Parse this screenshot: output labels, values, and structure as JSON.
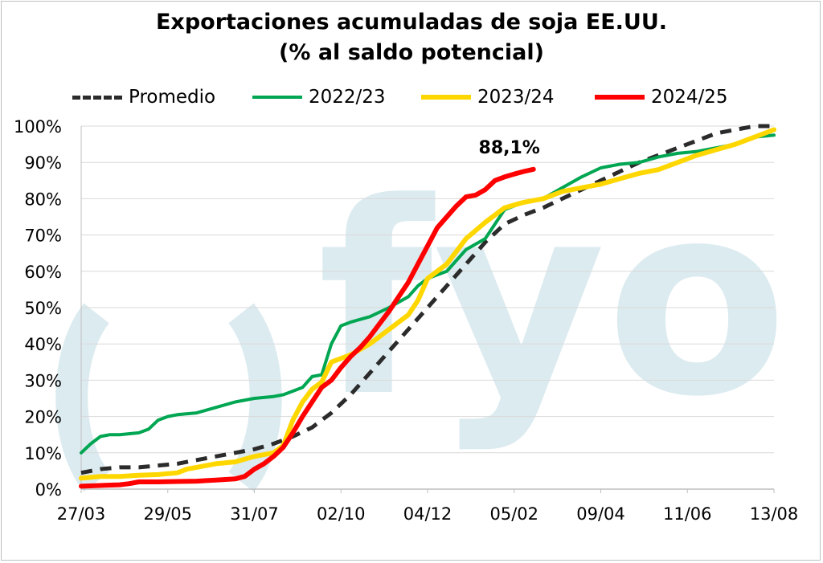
{
  "chart_data": {
    "type": "line",
    "title": "Exportaciones acumuladas de soja EE.UU.",
    "subtitle": "(% al saldo potencial)",
    "xlabel": "",
    "ylabel": "",
    "ylim": [
      0,
      100
    ],
    "x_ticks": [
      "27/03",
      "29/05",
      "31/07",
      "02/10",
      "04/12",
      "05/02",
      "09/04",
      "11/06",
      "13/08"
    ],
    "y_ticks": [
      "0%",
      "10%",
      "20%",
      "30%",
      "40%",
      "50%",
      "60%",
      "70%",
      "80%",
      "90%",
      "100%"
    ],
    "grid": true,
    "legend_position": "top",
    "annotation": "88,1%",
    "watermark": "fyo",
    "series": [
      {
        "name": "Promedio",
        "color": "#2b2b2b",
        "dash": true,
        "points": [
          [
            0,
            4.5
          ],
          [
            1,
            5.5
          ],
          [
            2,
            6
          ],
          [
            3,
            6
          ],
          [
            4,
            6.5
          ],
          [
            5,
            7
          ],
          [
            6,
            8
          ],
          [
            7,
            9
          ],
          [
            8,
            10
          ],
          [
            9,
            11
          ],
          [
            10,
            12.5
          ],
          [
            11,
            14.5
          ],
          [
            12,
            17
          ],
          [
            13,
            21
          ],
          [
            14,
            26
          ],
          [
            15,
            32
          ],
          [
            16,
            38
          ],
          [
            17,
            44
          ],
          [
            18,
            50
          ],
          [
            19,
            56
          ],
          [
            20,
            62
          ],
          [
            21,
            68
          ],
          [
            22,
            73
          ],
          [
            23,
            75.5
          ],
          [
            24,
            77.5
          ],
          [
            25,
            80
          ],
          [
            26,
            82.5
          ],
          [
            27,
            85
          ],
          [
            28,
            87.5
          ],
          [
            29,
            90
          ],
          [
            30,
            92
          ],
          [
            31,
            94
          ],
          [
            32,
            96
          ],
          [
            33,
            98
          ],
          [
            34,
            99
          ],
          [
            35,
            100
          ],
          [
            36,
            100
          ]
        ]
      },
      {
        "name": "2022/23",
        "color": "#00a651",
        "dash": false,
        "points": [
          [
            0,
            10
          ],
          [
            0.5,
            12.5
          ],
          [
            1,
            14.5
          ],
          [
            1.5,
            15
          ],
          [
            2,
            15
          ],
          [
            3,
            15.5
          ],
          [
            3.5,
            16.5
          ],
          [
            4,
            19
          ],
          [
            4.5,
            20
          ],
          [
            5,
            20.5
          ],
          [
            6,
            21
          ],
          [
            7,
            22.5
          ],
          [
            8,
            24
          ],
          [
            9,
            25
          ],
          [
            10,
            25.5
          ],
          [
            10.5,
            26
          ],
          [
            11,
            27
          ],
          [
            11.5,
            28
          ],
          [
            12,
            31
          ],
          [
            12.5,
            31.5
          ],
          [
            13,
            40
          ],
          [
            13.5,
            45
          ],
          [
            14,
            46
          ],
          [
            15,
            47.5
          ],
          [
            16,
            50
          ],
          [
            17,
            53
          ],
          [
            17.5,
            56
          ],
          [
            18,
            58
          ],
          [
            19,
            60
          ],
          [
            20,
            66
          ],
          [
            21,
            69
          ],
          [
            22,
            77
          ],
          [
            23,
            79
          ],
          [
            24,
            80
          ],
          [
            25,
            83
          ],
          [
            26,
            86
          ],
          [
            27,
            88.5
          ],
          [
            28,
            89.5
          ],
          [
            29,
            90
          ],
          [
            30,
            91.5
          ],
          [
            31,
            92.5
          ],
          [
            32,
            93
          ],
          [
            33,
            94
          ],
          [
            34,
            95
          ],
          [
            35,
            97
          ],
          [
            36,
            97.5
          ]
        ]
      },
      {
        "name": "2023/24",
        "color": "#ffd700",
        "dash": false,
        "points": [
          [
            0,
            3
          ],
          [
            1,
            3.5
          ],
          [
            2,
            3.5
          ],
          [
            3,
            3.8
          ],
          [
            4,
            4
          ],
          [
            5,
            4.5
          ],
          [
            5.5,
            5.5
          ],
          [
            6,
            6
          ],
          [
            7,
            7
          ],
          [
            8,
            7.5
          ],
          [
            9,
            9
          ],
          [
            10,
            10
          ],
          [
            10.5,
            12
          ],
          [
            11,
            19
          ],
          [
            11.5,
            24
          ],
          [
            12,
            27.5
          ],
          [
            12.5,
            29.5
          ],
          [
            13,
            35
          ],
          [
            14,
            37
          ],
          [
            15,
            40
          ],
          [
            16,
            44
          ],
          [
            17,
            48
          ],
          [
            17.5,
            52
          ],
          [
            18,
            58
          ],
          [
            19,
            62
          ],
          [
            20,
            69
          ],
          [
            21,
            73.5
          ],
          [
            22,
            77.5
          ],
          [
            23,
            79
          ],
          [
            24,
            80
          ],
          [
            25,
            82
          ],
          [
            26,
            83
          ],
          [
            27,
            84
          ],
          [
            28,
            85.5
          ],
          [
            29,
            87
          ],
          [
            30,
            88
          ],
          [
            31,
            90
          ],
          [
            32,
            92
          ],
          [
            33,
            93.5
          ],
          [
            34,
            95
          ],
          [
            35,
            97
          ],
          [
            36,
            99
          ]
        ]
      },
      {
        "name": "2024/25",
        "color": "#ff0000",
        "dash": false,
        "points": [
          [
            0,
            0.8
          ],
          [
            1,
            1
          ],
          [
            2,
            1.2
          ],
          [
            2.5,
            1.5
          ],
          [
            3,
            2
          ],
          [
            4,
            2
          ],
          [
            5,
            2.1
          ],
          [
            6,
            2.2
          ],
          [
            7,
            2.5
          ],
          [
            8,
            2.8
          ],
          [
            8.5,
            3.5
          ],
          [
            9,
            5.5
          ],
          [
            9.5,
            7
          ],
          [
            10,
            9
          ],
          [
            10.5,
            11.5
          ],
          [
            11,
            15.5
          ],
          [
            11.5,
            20
          ],
          [
            12,
            24
          ],
          [
            12.5,
            28
          ],
          [
            13,
            30
          ],
          [
            13.5,
            33.5
          ],
          [
            14,
            36.5
          ],
          [
            14.5,
            39
          ],
          [
            15,
            42
          ],
          [
            15.5,
            45.5
          ],
          [
            16,
            49
          ],
          [
            16.5,
            53
          ],
          [
            17,
            57
          ],
          [
            17.5,
            62
          ],
          [
            18,
            67
          ],
          [
            18.5,
            72
          ],
          [
            19,
            75
          ],
          [
            19.5,
            78
          ],
          [
            20,
            80.5
          ],
          [
            20.5,
            81
          ],
          [
            21,
            82.5
          ],
          [
            21.5,
            85
          ],
          [
            22,
            86
          ],
          [
            22.5,
            86.8
          ],
          [
            23,
            87.5
          ],
          [
            23.5,
            88.1
          ]
        ]
      }
    ]
  },
  "legend": {
    "promedio": "Promedio",
    "y2022": "2022/23",
    "y2023": "2023/24",
    "y2024": "2024/25"
  }
}
